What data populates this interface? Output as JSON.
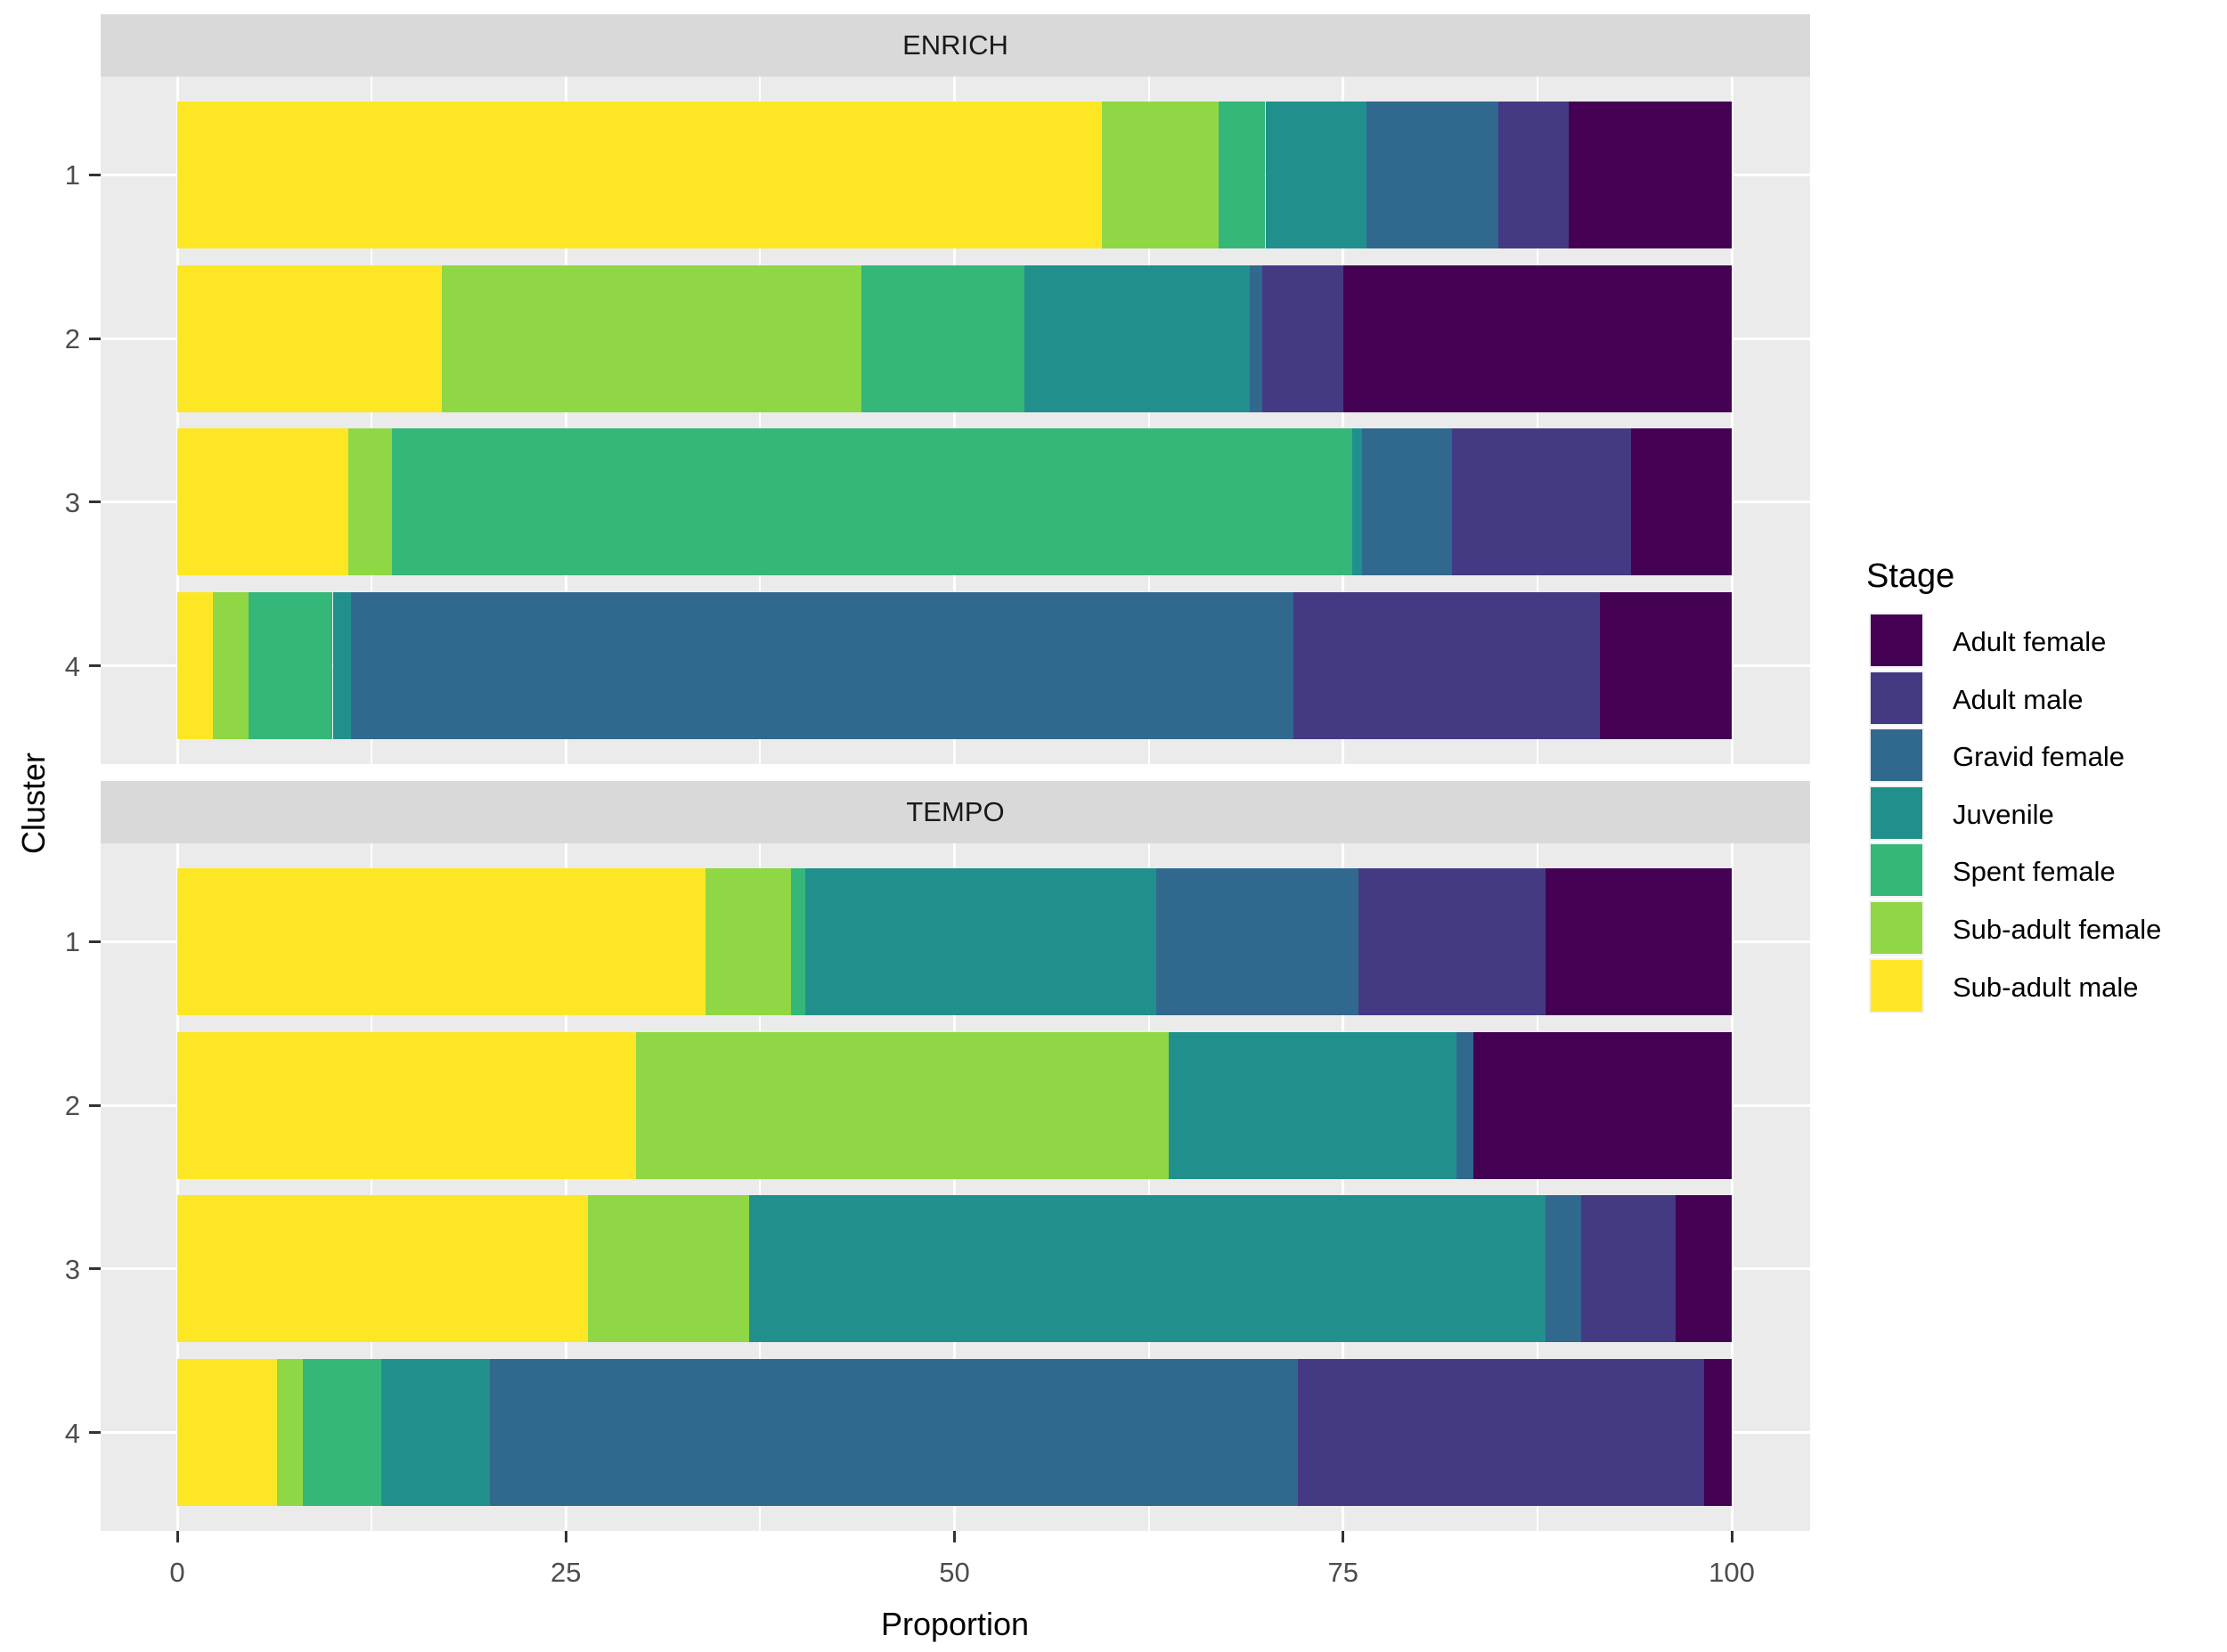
{
  "chart_data": {
    "type": "bar",
    "stacked": true,
    "orientation": "horizontal",
    "title": "",
    "xlabel": "Proportion",
    "ylabel": "Cluster",
    "xlim": [
      0,
      100
    ],
    "x_major_ticks": [
      0,
      25,
      50,
      75,
      100
    ],
    "x_minor_ticks": [
      12.5,
      37.5,
      62.5,
      87.5
    ],
    "grid": true,
    "legend": {
      "title": "Stage",
      "position": "right"
    },
    "stages": [
      {
        "label": "Adult female",
        "color": "#440154"
      },
      {
        "label": "Adult male",
        "color": "#443A83"
      },
      {
        "label": "Gravid female",
        "color": "#31688E"
      },
      {
        "label": "Juvenile",
        "color": "#21908C"
      },
      {
        "label": "Spent female",
        "color": "#35B779"
      },
      {
        "label": "Sub-adult female",
        "color": "#8FD744"
      },
      {
        "label": "Sub-adult male",
        "color": "#FDE725"
      }
    ],
    "stack_note": "segments stack left-to-right in reverse of the stages list (Sub-adult male first)",
    "facets": [
      {
        "label": "ENRICH",
        "categories": [
          "1",
          "2",
          "3",
          "4"
        ],
        "values": [
          [
            10.5,
            4.5,
            8.5,
            6.5,
            3.0,
            7.5,
            59.5
          ],
          [
            25.0,
            5.2,
            0.8,
            14.5,
            10.5,
            27.0,
            17.0
          ],
          [
            6.5,
            11.5,
            5.8,
            0.6,
            61.8,
            2.8,
            11.0
          ],
          [
            8.5,
            19.7,
            60.6,
            1.2,
            5.4,
            2.3,
            2.3
          ]
        ]
      },
      {
        "label": "TEMPO",
        "categories": [
          "1",
          "2",
          "3",
          "4"
        ],
        "values": [
          [
            12.0,
            12.0,
            13.0,
            22.6,
            0.9,
            5.5,
            34.0
          ],
          [
            16.6,
            0.0,
            1.1,
            18.5,
            0.0,
            34.3,
            29.5
          ],
          [
            3.6,
            6.1,
            2.3,
            51.2,
            0.0,
            10.4,
            26.4
          ],
          [
            1.8,
            26.1,
            52.0,
            7.0,
            5.0,
            1.7,
            6.4
          ]
        ]
      }
    ],
    "panel_background": "#EBEBEB",
    "strip_background": "#D9D9D9",
    "gridline_color": "#FFFFFF",
    "tick_label_color": "#4D4D4D"
  }
}
